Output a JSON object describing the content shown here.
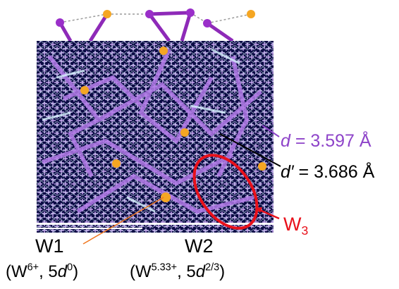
{
  "labels": {
    "d": {
      "symbol": "d",
      "text": " = 3.597 Å",
      "color": "#8e44c9"
    },
    "d_prime": {
      "symbol": "d′",
      "text": " = 3.686 Å",
      "color": "#000000"
    },
    "w3": {
      "main": "W",
      "sub": "3",
      "color": "#e8101a"
    },
    "w1": {
      "name": "W1",
      "ox_open": "(W",
      "ox_sup": "6+",
      "ox_mid": ", 5",
      "ox_d": "d",
      "ox_dsup": "0",
      "ox_close": ")"
    },
    "w2": {
      "name": "W2",
      "ox_open": "(W",
      "ox_sup": "5.33+",
      "ox_mid": ", 5",
      "ox_d": "d",
      "ox_dsup": "2/3",
      "ox_close": ")"
    }
  },
  "colors": {
    "panel_bg": "#0b0b45",
    "w_atom": "#9a2fc9",
    "o_atom": "#f5a623",
    "bond_purple": "#8e2ab8",
    "lattice_lavender": "#c8a8f0",
    "lattice_cyan": "#d8f4ff",
    "distance_dash": "#9a9a9a",
    "w3_ring": "#e8101a",
    "w1_pointer": "#f07820",
    "dprime_pointer": "#000000"
  }
}
